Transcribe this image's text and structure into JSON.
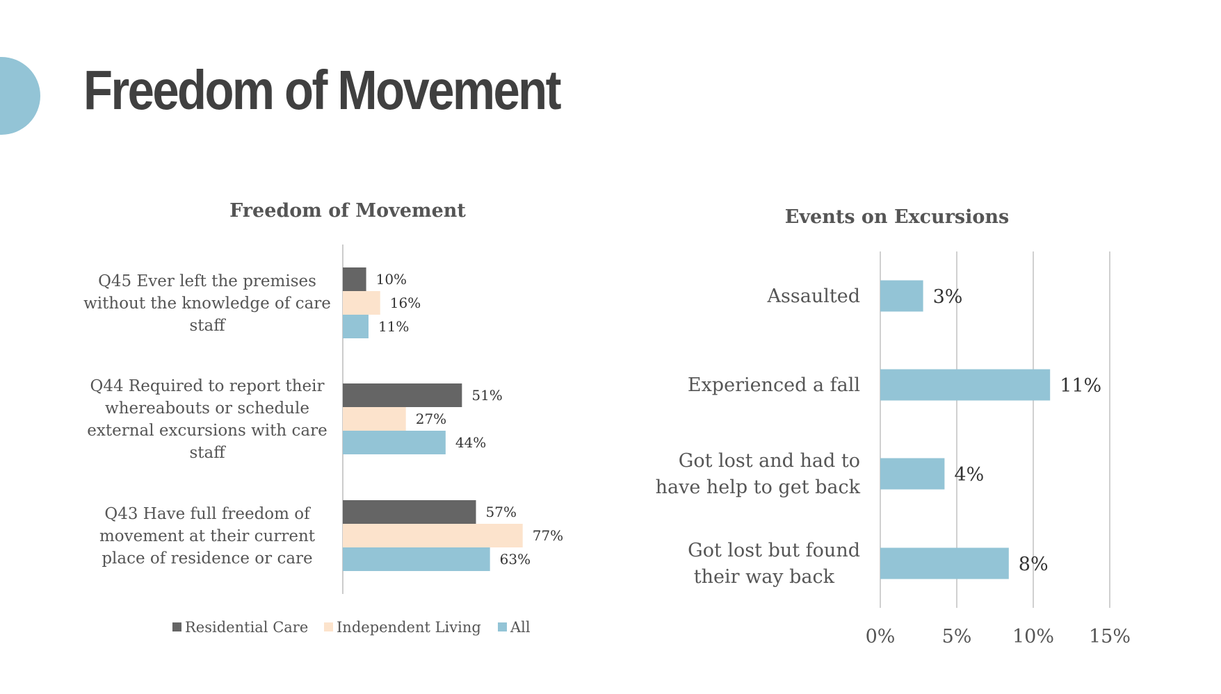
{
  "page": {
    "title": "Freedom of Movement",
    "accent_color": "#93c4d6"
  },
  "chart_data": [
    {
      "type": "bar",
      "orientation": "horizontal",
      "title": "Freedom of Movement",
      "categories": [
        "Q45 Ever left the premises without the knowledge of care staff",
        "Q44 Required to report their whereabouts or schedule external excursions with care staff",
        "Q43 Have full freedom of movement at their current place of residence or care"
      ],
      "category_lines": [
        [
          "Q45 Ever left the premises",
          "without the knowledge of care",
          "staff"
        ],
        [
          "Q44 Required to report their",
          "whereabouts or schedule",
          "external excursions with care",
          "staff"
        ],
        [
          "Q43 Have full freedom of",
          "movement at their current",
          "place of residence or care"
        ]
      ],
      "series": [
        {
          "name": "Residential Care",
          "color": "#656565",
          "values": [
            10,
            51,
            57
          ],
          "labels": [
            "10%",
            "51%",
            "57%"
          ]
        },
        {
          "name": "Independent Living",
          "color": "#fce3cc",
          "values": [
            16,
            27,
            77
          ],
          "labels": [
            "16%",
            "27%",
            "77%"
          ]
        },
        {
          "name": "All",
          "color": "#93c4d6",
          "values": [
            11,
            44,
            63
          ],
          "labels": [
            "11%",
            "44%",
            "63%"
          ]
        }
      ],
      "xlim": [
        0,
        100
      ],
      "grid": false,
      "legend": "bottom"
    },
    {
      "type": "bar",
      "orientation": "horizontal",
      "title": "Events on Excursions",
      "categories": [
        "Assaulted",
        "Experienced a fall",
        "Got lost and had to have help to get back",
        "Got lost but found their way back"
      ],
      "category_lines": [
        [
          "Assaulted"
        ],
        [
          "Experienced a fall"
        ],
        [
          "Got lost and had to",
          "have help to get back"
        ],
        [
          "Got lost but found",
          "their way back"
        ]
      ],
      "values": [
        2.8,
        11.1,
        4.2,
        8.4
      ],
      "labels": [
        "3%",
        "11%",
        "4%",
        "8%"
      ],
      "color": "#93c4d6",
      "xlim": [
        0,
        15
      ],
      "ticks": [
        "0%",
        "5%",
        "10%",
        "15%"
      ],
      "tick_values": [
        0,
        5,
        10,
        15
      ],
      "grid": true
    }
  ]
}
